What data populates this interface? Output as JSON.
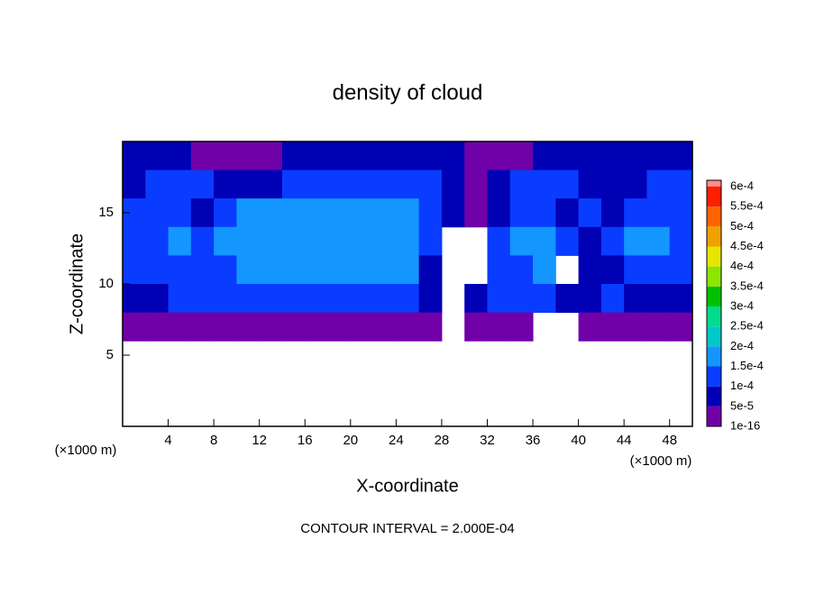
{
  "chart_data": {
    "type": "heatmap",
    "title": "density of cloud",
    "x_label": "X-coordinate",
    "y_label": "Z-coordinate",
    "x_unit": "(×1000 m)",
    "y_unit": "(×1000 m)",
    "annotation": "CONTOUR INTERVAL = 2.000E-04",
    "xlim": [
      0,
      50
    ],
    "ylim": [
      0,
      20
    ],
    "xticks": [
      4,
      8,
      12,
      16,
      20,
      24,
      28,
      32,
      36,
      40,
      44,
      48
    ],
    "yticks": [
      5,
      10,
      15
    ],
    "x": [
      1,
      3,
      5,
      7,
      9,
      11,
      13,
      15,
      17,
      19,
      21,
      23,
      25,
      27,
      29,
      31,
      33,
      35,
      37,
      39,
      41,
      43,
      45,
      47,
      49
    ],
    "y": [
      19,
      17,
      15,
      13,
      11,
      9,
      7,
      5,
      3,
      1
    ],
    "z": [
      [
        7e-05,
        7e-05,
        7e-05,
        3e-05,
        3e-05,
        3e-05,
        3e-05,
        7e-05,
        7e-05,
        7e-05,
        7e-05,
        7e-05,
        7e-05,
        7e-05,
        7e-05,
        3e-05,
        3e-05,
        3e-05,
        7e-05,
        7e-05,
        7e-05,
        7e-05,
        7e-05,
        7e-05,
        7e-05
      ],
      [
        7e-05,
        0.00012,
        0.00012,
        0.00012,
        7e-05,
        7e-05,
        7e-05,
        0.00012,
        0.00012,
        0.00012,
        0.00012,
        0.00012,
        0.00012,
        0.00012,
        7e-05,
        3e-05,
        7e-05,
        0.00012,
        0.00012,
        0.00012,
        7e-05,
        7e-05,
        7e-05,
        0.00012,
        0.00012
      ],
      [
        0.00012,
        0.00012,
        0.00012,
        7e-05,
        0.00012,
        0.00017,
        0.00017,
        0.00017,
        0.00017,
        0.00017,
        0.00017,
        0.00017,
        0.00017,
        0.00012,
        7e-05,
        3e-05,
        7e-05,
        0.00012,
        0.00012,
        7e-05,
        0.00012,
        7e-05,
        0.00012,
        0.00012,
        0.00012
      ],
      [
        0.00012,
        0.00012,
        0.00017,
        0.00012,
        0.00017,
        0.00017,
        0.00017,
        0.00017,
        0.00017,
        0.00017,
        0.00017,
        0.00017,
        0.00017,
        0.00012,
        null,
        null,
        0.00012,
        0.00017,
        0.00017,
        0.00012,
        7e-05,
        0.00012,
        0.00017,
        0.00017,
        0.00012
      ],
      [
        0.00012,
        0.00012,
        0.00012,
        0.00012,
        0.00012,
        0.00017,
        0.00017,
        0.00017,
        0.00017,
        0.00017,
        0.00017,
        0.00017,
        0.00017,
        7e-05,
        null,
        null,
        0.00012,
        0.00012,
        0.00017,
        null,
        7e-05,
        7e-05,
        0.00012,
        0.00012,
        0.00012
      ],
      [
        7e-05,
        7e-05,
        0.00012,
        0.00012,
        0.00012,
        0.00012,
        0.00012,
        0.00012,
        0.00012,
        0.00012,
        0.00012,
        0.00012,
        0.00012,
        7e-05,
        null,
        7e-05,
        0.00012,
        0.00012,
        0.00012,
        7e-05,
        7e-05,
        0.00012,
        7e-05,
        7e-05,
        7e-05
      ],
      [
        3e-05,
        3e-05,
        3e-05,
        3e-05,
        3e-05,
        3e-05,
        3e-05,
        3e-05,
        3e-05,
        3e-05,
        3e-05,
        3e-05,
        3e-05,
        3e-05,
        null,
        3e-05,
        3e-05,
        3e-05,
        null,
        null,
        3e-05,
        3e-05,
        3e-05,
        3e-05,
        3e-05
      ],
      [
        null,
        null,
        null,
        null,
        null,
        null,
        null,
        null,
        null,
        null,
        null,
        null,
        null,
        null,
        null,
        null,
        null,
        null,
        null,
        null,
        null,
        null,
        null,
        null,
        null
      ],
      [
        null,
        null,
        null,
        null,
        null,
        null,
        null,
        null,
        null,
        null,
        null,
        null,
        null,
        null,
        null,
        null,
        null,
        null,
        null,
        null,
        null,
        null,
        null,
        null,
        null
      ],
      [
        null,
        null,
        null,
        null,
        null,
        null,
        null,
        null,
        null,
        null,
        null,
        null,
        null,
        null,
        null,
        null,
        null,
        null,
        null,
        null,
        null,
        null,
        null,
        null,
        null
      ]
    ],
    "levels": [
      {
        "value": 1e-16,
        "label": "1e-16"
      },
      {
        "value": 5e-05,
        "label": "5e-5"
      },
      {
        "value": 0.0001,
        "label": "1e-4"
      },
      {
        "value": 0.00015,
        "label": "1.5e-4"
      },
      {
        "value": 0.0002,
        "label": "2e-4"
      },
      {
        "value": 0.00025,
        "label": "2.5e-4"
      },
      {
        "value": 0.0003,
        "label": "3e-4"
      },
      {
        "value": 0.00035,
        "label": "3.5e-4"
      },
      {
        "value": 0.0004,
        "label": "4e-4"
      },
      {
        "value": 0.00045,
        "label": "4.5e-4"
      },
      {
        "value": 0.0005,
        "label": "5e-4"
      },
      {
        "value": 0.00055,
        "label": "5.5e-4"
      },
      {
        "value": 0.0006,
        "label": "6e-4"
      }
    ],
    "colors": [
      "#7000a8",
      "#0000b4",
      "#0a3cff",
      "#1496ff",
      "#00c8c8",
      "#00dc8c",
      "#00c000",
      "#8ce600",
      "#e6e600",
      "#f0a000",
      "#ff6400",
      "#ff1e00",
      "#ff8c8c"
    ]
  }
}
